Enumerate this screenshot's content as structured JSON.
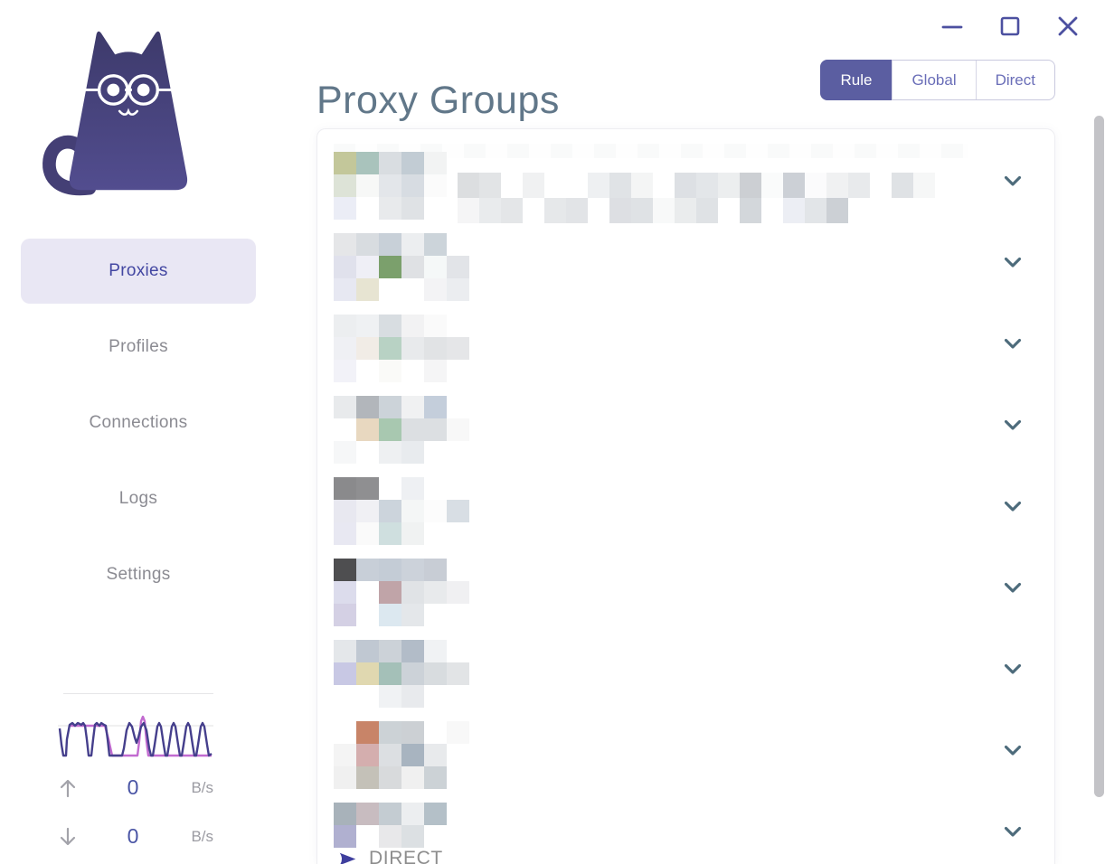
{
  "window": {
    "controls": {
      "minimize": "minimize",
      "maximize": "maximize",
      "close": "close"
    },
    "accent_color": "#4c50a0"
  },
  "header": {
    "title": "Proxy Groups",
    "modes": [
      {
        "label": "Rule",
        "active": true
      },
      {
        "label": "Global",
        "active": false
      },
      {
        "label": "Direct",
        "active": false
      }
    ],
    "active_mode_bg": "#5b5ea1"
  },
  "sidebar": {
    "logo": "clash-verge-cat",
    "items": [
      {
        "label": "Proxies",
        "active": true
      },
      {
        "label": "Profiles",
        "active": false
      },
      {
        "label": "Connections",
        "active": false
      },
      {
        "label": "Logs",
        "active": false
      },
      {
        "label": "Settings",
        "active": false
      }
    ],
    "traffic": {
      "upload": {
        "value": "0",
        "unit": "B/s"
      },
      "download": {
        "value": "0",
        "unit": "B/s"
      },
      "graph_colors": {
        "download_line": "#453f8c",
        "upload_line": "#c26bd0"
      }
    }
  },
  "groups": [
    {
      "top_strip": true,
      "mosaic": [
        [
          "#c3c79a",
          "#a9c3bc",
          "#d9dde1",
          "#c2ccd4",
          "#f2f3f3",
          ""
        ],
        [
          "#dde3d7",
          "#f7f8f7",
          "#e3e6ea",
          "#d7dce2",
          "#fbfbfb",
          ""
        ],
        [
          "#ebedf6",
          "#ffffff",
          "#e8eaec",
          "#dfe2e5",
          "",
          ""
        ]
      ],
      "wide": [
        [
          "#dcdee0",
          "#e2e4e6",
          "",
          "#f0f1f2",
          "",
          "",
          "#eef0f2",
          "#e0e3e6",
          "#f4f5f5",
          "",
          "#dde0e4",
          "#e3e6e9",
          "#eceeef",
          "#cccfd3",
          "#fafbfb",
          "#ccd0d6",
          "#fbfbfc",
          "#f0f1f2",
          "#e8eaec",
          "",
          "#dfe2e5",
          "#f6f7f7"
        ],
        [
          "#f5f5f6",
          "#e9ebed",
          "#e4e6e8",
          "",
          "#e6e8ea",
          "#e2e4e7",
          "",
          "#dddfe3",
          "#dfe2e5",
          "#f8f9f9",
          "#eaeced",
          "#dfe2e5",
          "",
          "#d3d7db",
          "",
          "#eceef4",
          "#e2e5e8",
          "#ccd0d5",
          "",
          "",
          "",
          ""
        ]
      ]
    },
    {
      "mosaic": [
        [
          "#e5e6e8",
          "#d8dce0",
          "#c8d0d8",
          "#eceef0",
          "#ccd4da",
          ""
        ],
        [
          "#e0e1ec",
          "#efeff6",
          "#7ba06c",
          "#dfe1e4",
          "#f5f8f8",
          "#e2e4e8"
        ],
        [
          "#e7e8f2",
          "#e7e4d2",
          "#ffffff",
          "#ffffff",
          "#f3f3f5",
          "#ebedf0"
        ]
      ]
    },
    {
      "mosaic": [
        [
          "#eceef0",
          "#eff1f3",
          "#d8dde1",
          "#f2f2f3",
          "#fafafa",
          ""
        ],
        [
          "#eff0f4",
          "#f1ece6",
          "#b8d2c4",
          "#e8eaec",
          "#e1e3e5",
          "#e5e6e8"
        ],
        [
          "#f2f2f8",
          "#ffffff",
          "#fafaf8",
          "#ffffff",
          "#f5f5f6",
          ""
        ]
      ]
    },
    {
      "mosaic": [
        [
          "#e8eaec",
          "#b2b6bb",
          "#ccd3d9",
          "#f0f1f2",
          "#c4cedb",
          ""
        ],
        [
          "#ffffff",
          "#e8d8c0",
          "#a8c8b0",
          "#dcdfe2",
          "#dcdfe2",
          "#f8f8f8"
        ],
        [
          "#f6f7f8",
          "#ffffff",
          "#eef0f2",
          "#e8ebee",
          "",
          ""
        ]
      ]
    },
    {
      "mosaic": [
        [
          "#8a8a8c",
          "#8f8f91",
          "#ffffff",
          "#eef0f3",
          "",
          ""
        ],
        [
          "#e8e8f0",
          "#f0f0f4",
          "#ccd4dc",
          "#f4f6f6",
          "#fcfcfc",
          "#d8dee4"
        ],
        [
          "#e8e8f2",
          "#fafafa",
          "#cfdfdf",
          "#f0f2f2",
          "",
          ""
        ]
      ]
    },
    {
      "mosaic": [
        [
          "#4e4e50",
          "#c8cfd8",
          "#c4ccd6",
          "#ccd2da",
          "#c8cdd5",
          ""
        ],
        [
          "#dcdcec",
          "#ffffff",
          "#c0a4a8",
          "#e0e3e6",
          "#e8eaec",
          "#f0f0f2"
        ],
        [
          "#d4d0e4",
          "#ffffff",
          "#dce8f0",
          "#e4e7ea",
          "",
          ""
        ]
      ]
    },
    {
      "mosaic": [
        [
          "#e4e7ea",
          "#c0c8d2",
          "#ccd2d8",
          "#b2bcc8",
          "#f0f2f4",
          ""
        ],
        [
          "#c8c8e4",
          "#e0d8b0",
          "#a4c0b8",
          "#ccd2d8",
          "#d8dcdf",
          "#e2e4e6"
        ],
        [
          "#ffffff",
          "#ffffff",
          "#f0f2f4",
          "#e8eaed",
          "",
          ""
        ]
      ]
    },
    {
      "mosaic": [
        [
          "#ffffff",
          "#c88468",
          "#ccd2d6",
          "#ccd0d4",
          "#ffffff",
          "#f8f8f8"
        ],
        [
          "#f4f4f4",
          "#d4aeae",
          "#dcdfe2",
          "#a8b4c0",
          "#e8eaec",
          "#ffffff"
        ],
        [
          "#f0f0f0",
          "#c4c1b8",
          "#d8dadc",
          "#f0f0f0",
          "#ccd2d6",
          ""
        ]
      ]
    },
    {
      "mosaic": [
        [
          "#a8b2ba",
          "#c8bcc0",
          "#c4ccd2",
          "#eceef0",
          "#b4c0c8",
          ""
        ],
        [
          "#b0b0d0",
          "#ffffff",
          "#e8e8ea",
          "#dce0e3",
          "",
          ""
        ]
      ],
      "current": "DIRECT"
    }
  ],
  "icons": {
    "chevron_color": "#4d6b7b",
    "direct_arrow_color": "#3f3f9e",
    "traffic_arrow_color": "#a3a3aa"
  }
}
